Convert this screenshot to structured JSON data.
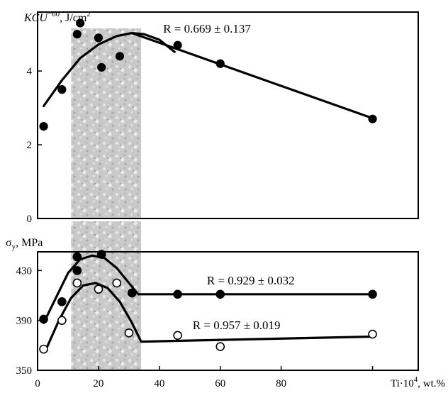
{
  "chart_data": [
    {
      "type": "scatter",
      "ylabel_main": "KCU",
      "ylabel_sup": "−60",
      "ylabel_units": ", J/cm",
      "ylabel_units_sup": "2",
      "xlim": [
        0,
        125
      ],
      "ylim": [
        0,
        5.6
      ],
      "yticks": [
        "0",
        "2",
        "4"
      ],
      "shaded_x_range": [
        11,
        34
      ],
      "series": [
        {
          "marker": "filled",
          "x": [
            2,
            8,
            13,
            14,
            20,
            21,
            27,
            46,
            60,
            110
          ],
          "y": [
            2.5,
            3.5,
            5.0,
            5.3,
            4.9,
            4.1,
            4.4,
            4.7,
            4.2,
            2.7
          ]
        }
      ],
      "fit_curves": [
        {
          "x": [
            2,
            8,
            14,
            20,
            26,
            31,
            35,
            40,
            45
          ],
          "y": [
            3.05,
            3.75,
            4.35,
            4.72,
            4.95,
            5.03,
            5.0,
            4.85,
            4.52
          ]
        },
        {
          "x": [
            31,
            110
          ],
          "y": [
            5.03,
            2.72
          ]
        }
      ],
      "annotations": [
        {
          "text": "R = 0.669 ± 0.137",
          "x": 58,
          "y": 5.0
        }
      ]
    },
    {
      "type": "scatter",
      "ylabel_main": "σ",
      "ylabel_sub": "y",
      "ylabel_units": ", MPa",
      "xlabel": "Ti·10",
      "xlabel_sup": "4",
      "xlabel_units": ", wt.%",
      "xlim": [
        0,
        125
      ],
      "ylim": [
        350,
        445
      ],
      "yticks": [
        "350",
        "390",
        "430"
      ],
      "xticks": [
        "0",
        "20",
        "40",
        "60",
        "80"
      ],
      "shaded_x_range": [
        11,
        34
      ],
      "series": [
        {
          "marker": "filled",
          "x": [
            2,
            8,
            13,
            13,
            21,
            31,
            46,
            60,
            110
          ],
          "y": [
            391,
            405,
            430,
            441,
            443,
            412,
            411,
            411,
            411
          ],
          "fit": {
            "x": [
              2,
              6,
              10,
              14,
              18,
              22,
              26,
              30,
              33,
              110
            ],
            "y": [
              388,
              408,
              428,
              439,
              442,
              440,
              432,
              420,
              411,
              411
            ]
          },
          "annotation": {
            "text": "R = 0.929 ± 0.032",
            "x": 57,
            "y": 421
          }
        },
        {
          "marker": "open",
          "x": [
            2,
            8,
            13,
            20,
            26,
            30,
            46,
            60,
            110
          ],
          "y": [
            367,
            390,
            420,
            415,
            420,
            380,
            378,
            369,
            379
          ],
          "fit": {
            "x": [
              3,
              7,
              11,
              15,
              19,
              23,
              27,
              31,
              34,
              110
            ],
            "y": [
              368,
              390,
              408,
              418,
              420,
              416,
              405,
              388,
              373,
              377
            ]
          },
          "annotation": {
            "text": "R = 0.957 ± 0.019",
            "x": 50,
            "y": 384
          }
        }
      ]
    }
  ]
}
